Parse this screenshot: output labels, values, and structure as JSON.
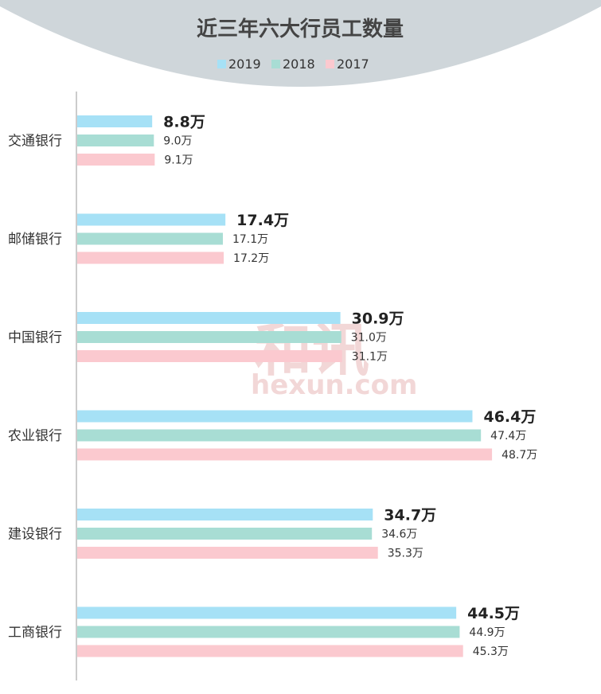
{
  "chart_data": {
    "type": "bar",
    "orientation": "horizontal",
    "title": "近三年六大行员工数量",
    "unit": "万",
    "categories": [
      "交通银行",
      "邮储银行",
      "中国银行",
      "农业银行",
      "建设银行",
      "工商银行"
    ],
    "series": [
      {
        "name": "2019",
        "color": "#a6e1f6",
        "values": [
          8.8,
          17.4,
          30.9,
          46.4,
          34.7,
          44.5
        ],
        "labels": [
          "8.8万",
          "17.4万",
          "30.9万",
          "46.4万",
          "34.7万",
          "44.5万"
        ]
      },
      {
        "name": "2018",
        "color": "#a8ddd4",
        "values": [
          9.0,
          17.1,
          31.0,
          47.4,
          34.6,
          44.9
        ],
        "labels": [
          "9.0万",
          "17.1万",
          "31.0万",
          "47.4万",
          "34.6万",
          "44.9万"
        ]
      },
      {
        "name": "2017",
        "color": "#fbc9cf",
        "values": [
          9.1,
          17.2,
          31.1,
          48.7,
          35.3,
          45.3
        ],
        "labels": [
          "9.1万",
          "17.2万",
          "31.1万",
          "48.7万",
          "35.3万",
          "45.3万"
        ]
      }
    ],
    "xlim": [
      0,
      50
    ],
    "grid": false,
    "legend_position": "top-center"
  },
  "watermark": {
    "cn": "和讯",
    "en": "hexun.com"
  },
  "colors": {
    "header_bg": "#cfd6da",
    "axis": "#bbbbbb",
    "watermark": "#e8b8b8"
  }
}
